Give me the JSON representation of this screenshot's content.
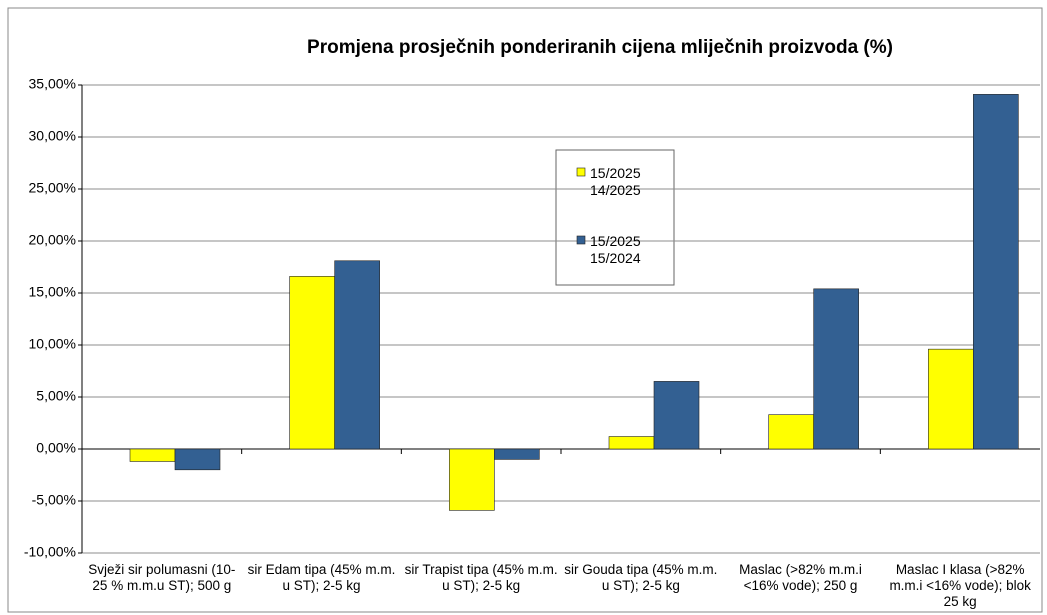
{
  "chart_data": {
    "type": "bar",
    "title": "Promjena prosječnih ponderiranih cijena mliječnih proizvoda (%)",
    "categories": [
      "Svježi sir polumasni (10-25 % m.m.u ST); 500 g",
      "sir Edam tipa (45% m.m. u ST); 2-5 kg",
      "sir Trapist tipa (45% m.m. u ST); 2-5 kg",
      "sir Gouda tipa (45% m.m. u ST); 2-5 kg",
      "Maslac (>82% m.m.i <16% vode); 250 g",
      "Maslac I klasa (>82% m.m.i <16% vode); blok 25 kg"
    ],
    "series": [
      {
        "name": "15/2025 14/2025",
        "color": "#ffff00",
        "values": [
          -1.2,
          16.6,
          -5.9,
          1.2,
          3.3,
          9.6
        ]
      },
      {
        "name": "15/2025 15/2024",
        "color": "#336092",
        "values": [
          -2.0,
          18.1,
          -1.0,
          6.5,
          15.4,
          34.1
        ]
      }
    ],
    "ylim": [
      -10,
      35
    ],
    "yticks": [
      {
        "value": -10,
        "label": "-10,00%"
      },
      {
        "value": -5,
        "label": "-5,00%"
      },
      {
        "value": 0,
        "label": "0,00%"
      },
      {
        "value": 5,
        "label": "5,00%"
      },
      {
        "value": 10,
        "label": "10,00%"
      },
      {
        "value": 15,
        "label": "15,00%"
      },
      {
        "value": 20,
        "label": "20,00%"
      },
      {
        "value": 25,
        "label": "25,00%"
      },
      {
        "value": 30,
        "label": "30,00%"
      },
      {
        "value": 35,
        "label": "35,00%"
      }
    ],
    "grid": true
  }
}
